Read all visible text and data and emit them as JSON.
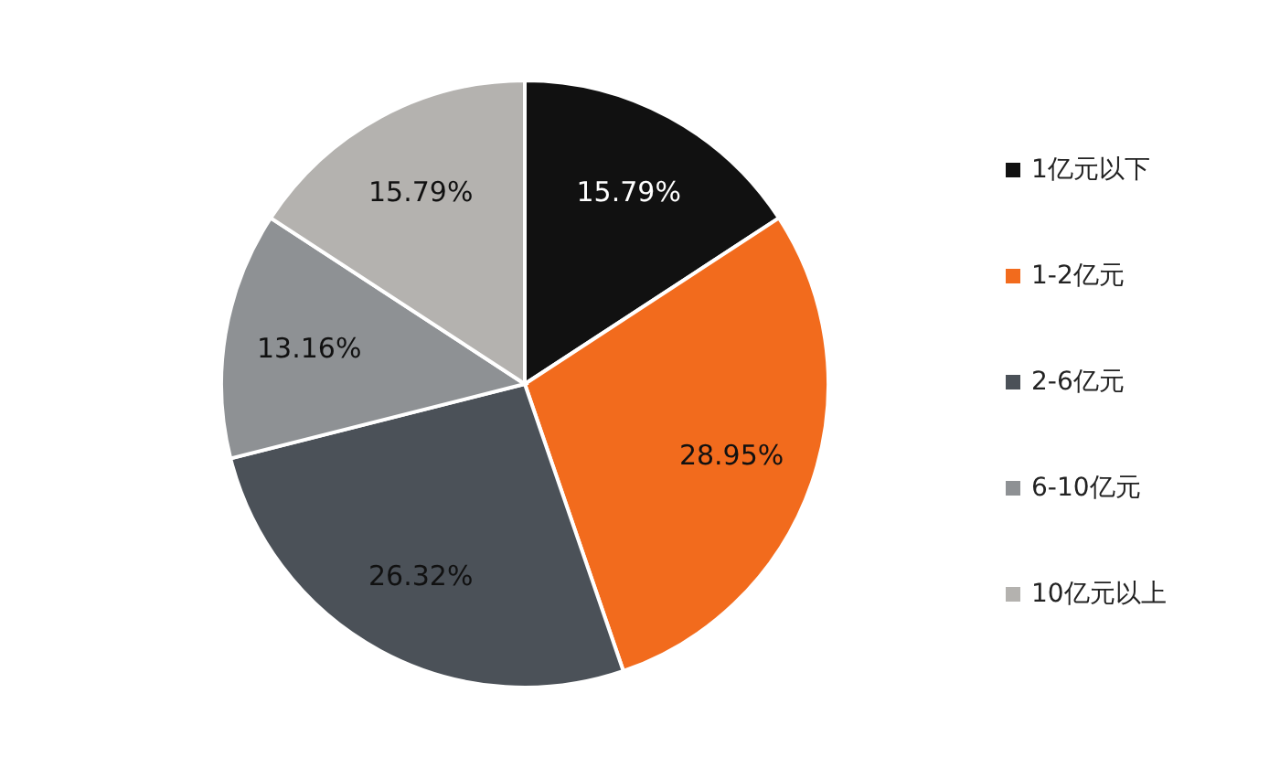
{
  "chart_data": {
    "type": "pie",
    "categories": [
      "1亿元以下",
      "1-2亿元",
      "2-6亿元",
      "6-10亿元",
      "10亿元以上"
    ],
    "values": [
      15.79,
      28.95,
      26.32,
      13.16,
      15.79
    ],
    "value_labels": [
      "15.79%",
      "28.95%",
      "26.32%",
      "13.16%",
      "15.79%"
    ],
    "colors": [
      "#111111",
      "#f26b1d",
      "#4b5158",
      "#8e9194",
      "#b4b2af"
    ],
    "legend": "right"
  }
}
